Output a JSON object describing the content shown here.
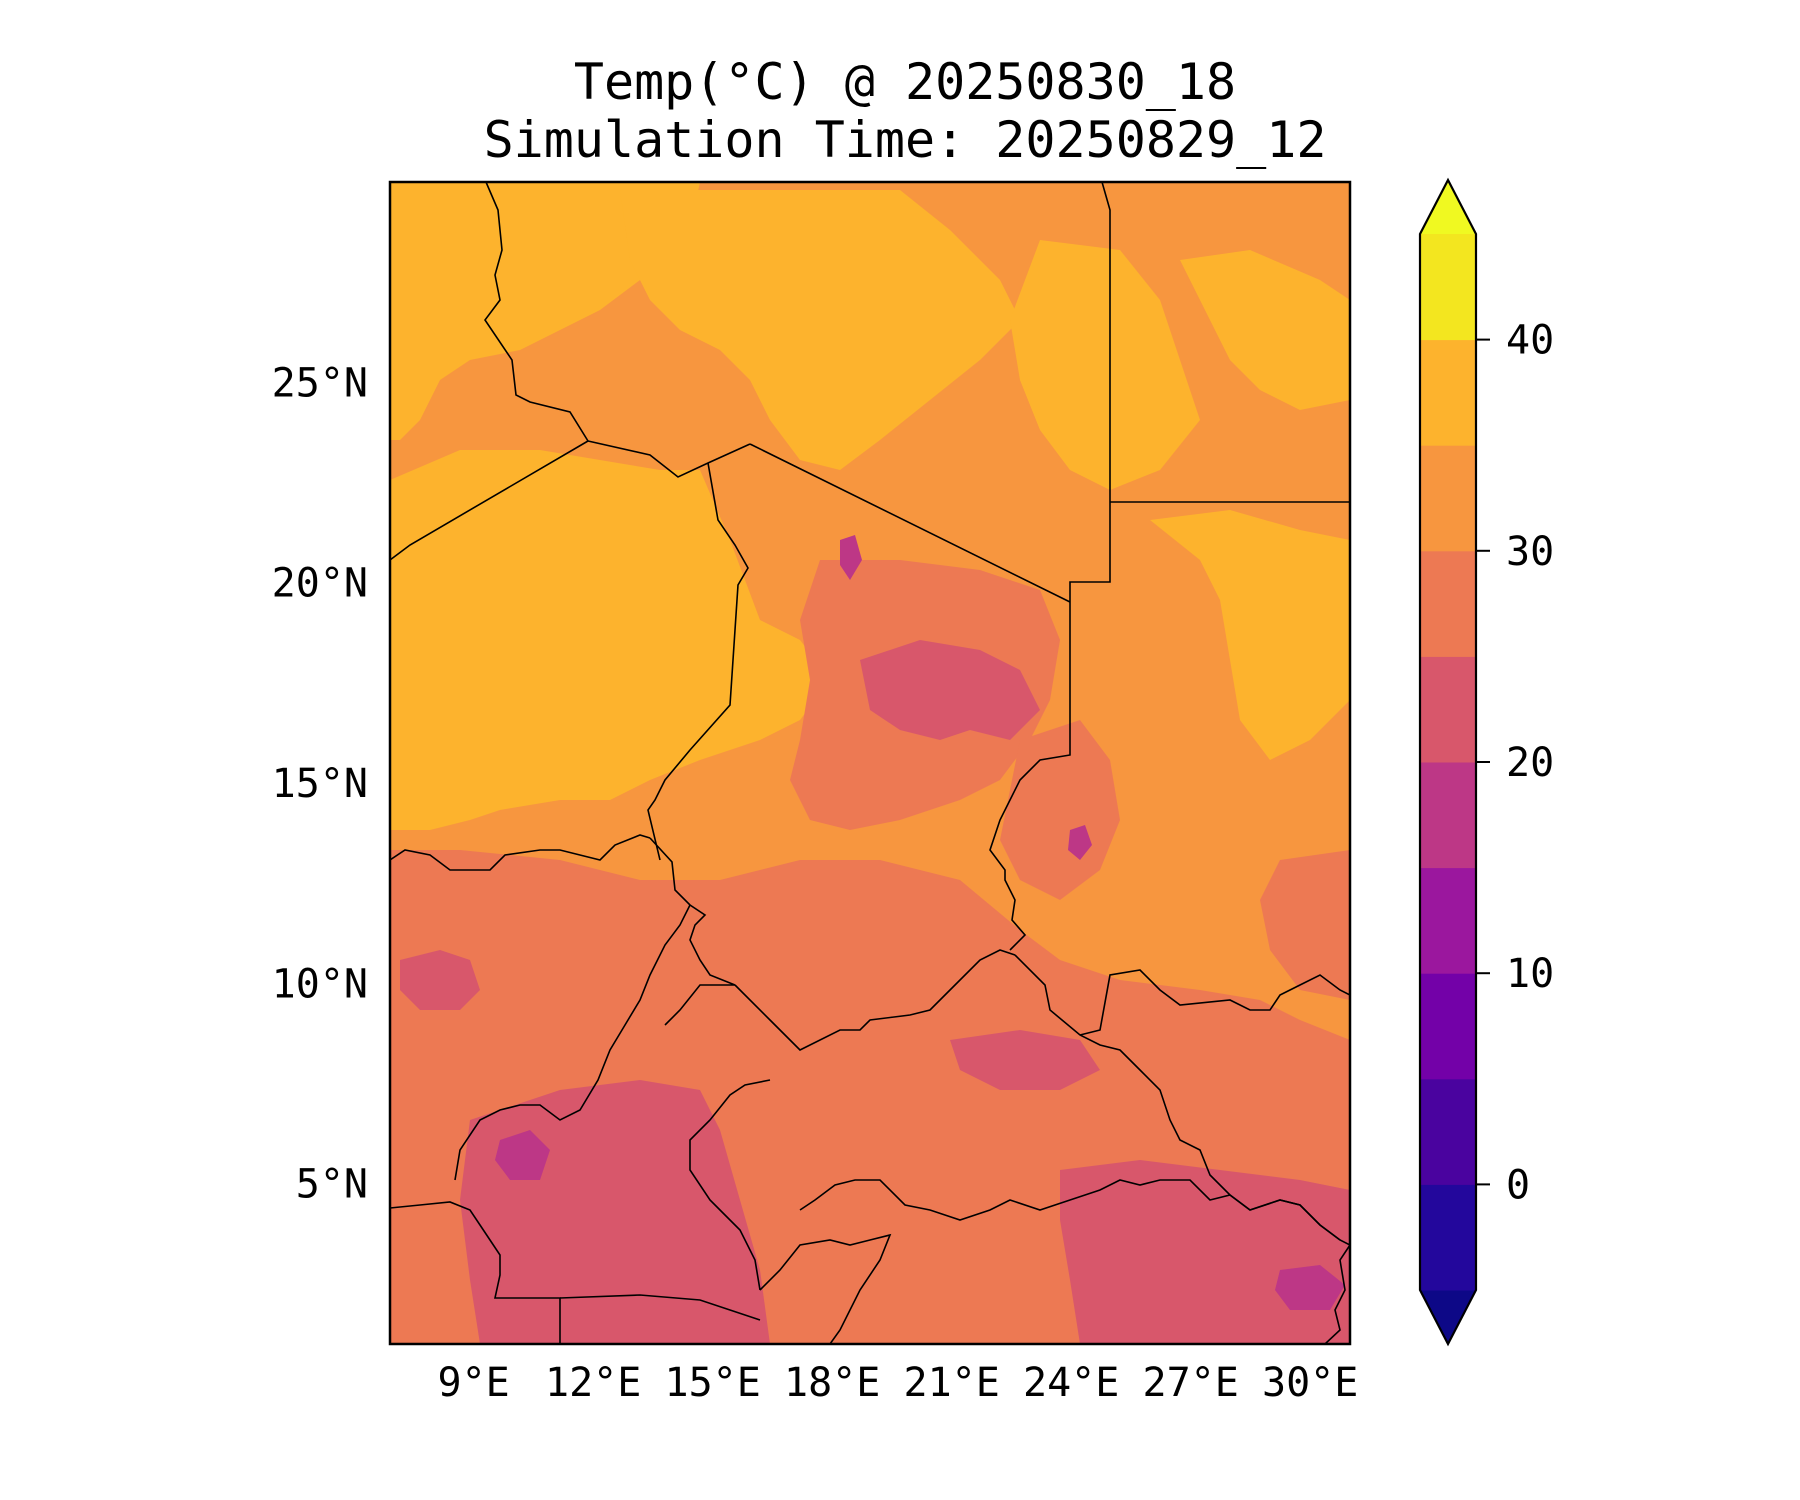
{
  "title": {
    "line1": "Temp(°C) @ 20250830_18",
    "line2": "Simulation Time: 20250829_12"
  },
  "map": {
    "lon_range": [
      6.9,
      31.0
    ],
    "lat_range": [
      1.0,
      30.0
    ],
    "x_ticks": [
      "9°E",
      "12°E",
      "15°E",
      "18°E",
      "21°E",
      "24°E",
      "27°E",
      "30°E"
    ],
    "x_tick_values": [
      9,
      12,
      15,
      18,
      21,
      24,
      27,
      30
    ],
    "y_ticks": [
      "5°N",
      "10°N",
      "15°N",
      "20°N",
      "25°N"
    ],
    "y_tick_values": [
      5,
      10,
      15,
      20,
      25
    ],
    "background_color": "#f7963f",
    "border_color": "#000000"
  },
  "colorbar": {
    "levels": [
      -5,
      0,
      5,
      10,
      15,
      20,
      25,
      30,
      35,
      40,
      45
    ],
    "colors": [
      "#23079c",
      "#4a039f",
      "#7301a8",
      "#9b179e",
      "#bd3786",
      "#d8576b",
      "#ed7953",
      "#f7963f",
      "#fdb32d",
      "#f3e61f"
    ],
    "under_color": "#0d0887",
    "over_color": "#f0f921",
    "tick_values": [
      0,
      10,
      20,
      30,
      40
    ],
    "tick_labels": [
      "0",
      "10",
      "20",
      "30",
      "40"
    ],
    "extend": "both"
  }
}
